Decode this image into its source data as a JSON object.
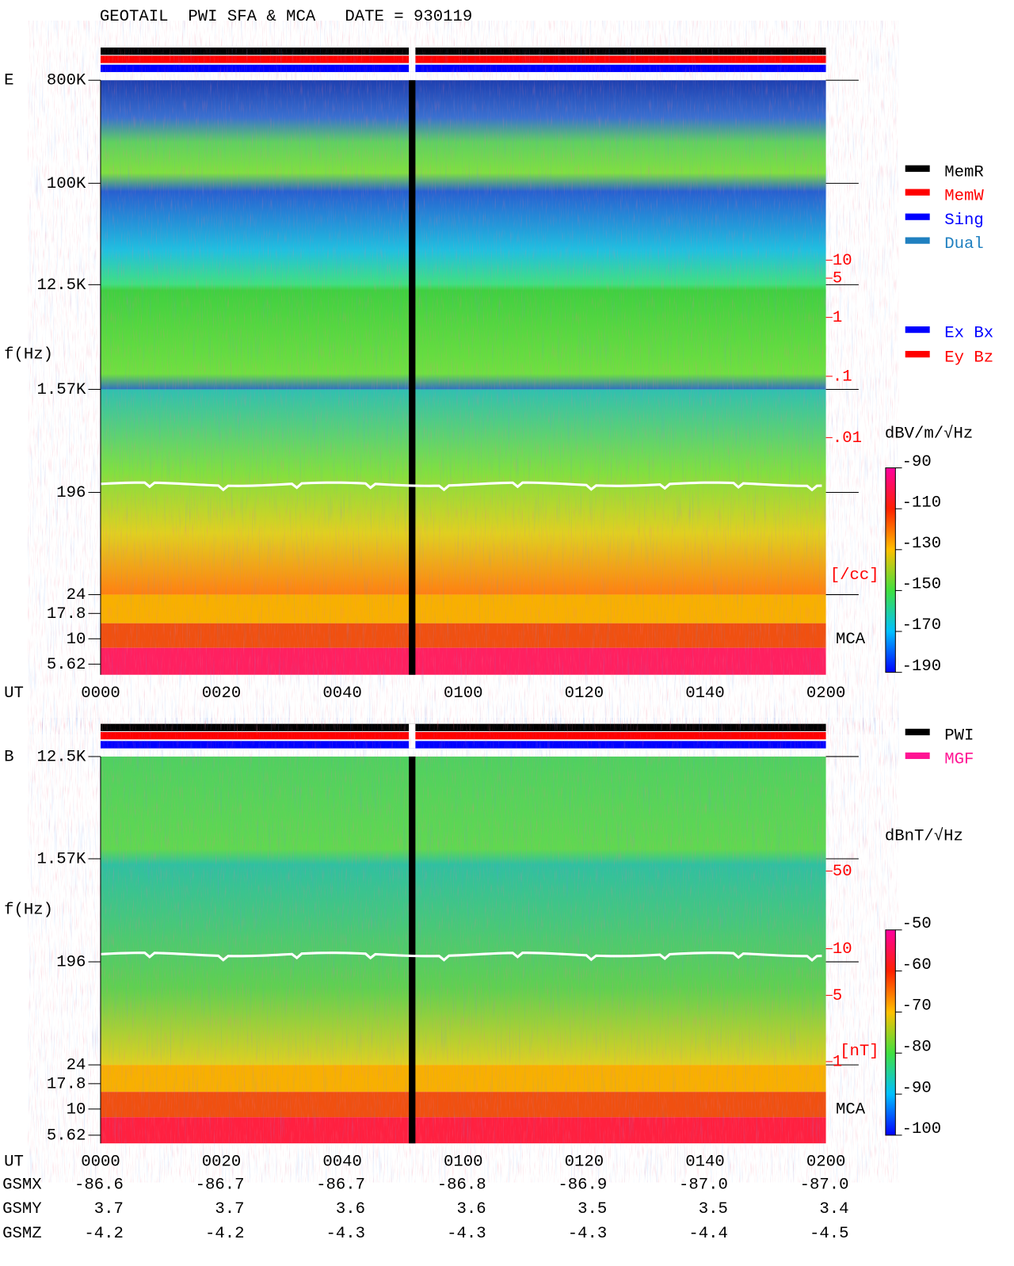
{
  "header": {
    "title": "GEOTAIL  PWI SFA & MCA   DATE = 930119"
  },
  "panels": [
    {
      "label": "E",
      "axis_label": "f(Hz)",
      "freq_ticks": [
        "800K",
        "100K",
        "12.5K",
        "1.57K",
        "196",
        "24",
        "17.8",
        "10",
        "5.62"
      ],
      "density_ticks": [
        "10",
        "5",
        "1",
        ".1",
        ".01"
      ],
      "density_unit": "[/cc]",
      "mca_label": "MCA",
      "time_label": "UT",
      "time_ticks": [
        "0000",
        "0020",
        "0040",
        "0100",
        "0120",
        "0140",
        "0200"
      ],
      "legend": [
        {
          "name": "MemR",
          "color": "#000000"
        },
        {
          "name": "MemW",
          "color": "#ff0000"
        },
        {
          "name": "Sing",
          "color": "#0000ff"
        },
        {
          "name": "Dual",
          "color": "#2080c0"
        },
        {
          "name": "Ex Bx",
          "color": "#0000ff"
        },
        {
          "name": "Ey Bz",
          "color": "#ff0000"
        }
      ],
      "colorbar": {
        "unit": "dBV/m/√Hz",
        "lim": [
          -190,
          -90
        ],
        "ticks": [
          -90,
          -110,
          -130,
          -150,
          -170,
          -190
        ]
      }
    },
    {
      "label": "B",
      "axis_label": "f(Hz)",
      "freq_ticks": [
        "12.5K",
        "1.57K",
        "196",
        "24",
        "17.8",
        "10",
        "5.62"
      ],
      "density_ticks": [
        "50",
        "10",
        "5",
        "1"
      ],
      "density_unit": "[nT]",
      "mca_label": "MCA",
      "time_label": "UT",
      "time_ticks": [
        "0000",
        "0020",
        "0040",
        "0100",
        "0120",
        "0140",
        "0200"
      ],
      "legend": [
        {
          "name": "PWI",
          "color": "#000000"
        },
        {
          "name": "MGF",
          "color": "#ff1493"
        }
      ],
      "colorbar": {
        "unit": "dBnT/√Hz",
        "lim": [
          -100,
          -50
        ],
        "ticks": [
          -50,
          -60,
          -70,
          -80,
          -90,
          -100
        ]
      }
    }
  ],
  "orbit": [
    {
      "name": "GSMX",
      "values": [
        "-86.6",
        "-86.7",
        "-86.7",
        "-86.8",
        "-86.9",
        "-87.0",
        "-87.0"
      ]
    },
    {
      "name": "GSMY",
      "values": [
        "3.7",
        "3.7",
        "3.6",
        "3.6",
        "3.5",
        "3.5",
        "3.4"
      ]
    },
    {
      "name": "GSMZ",
      "values": [
        "-4.2",
        "-4.2",
        "-4.3",
        "-4.3",
        "-4.3",
        "-4.4",
        "-4.5"
      ]
    }
  ]
}
